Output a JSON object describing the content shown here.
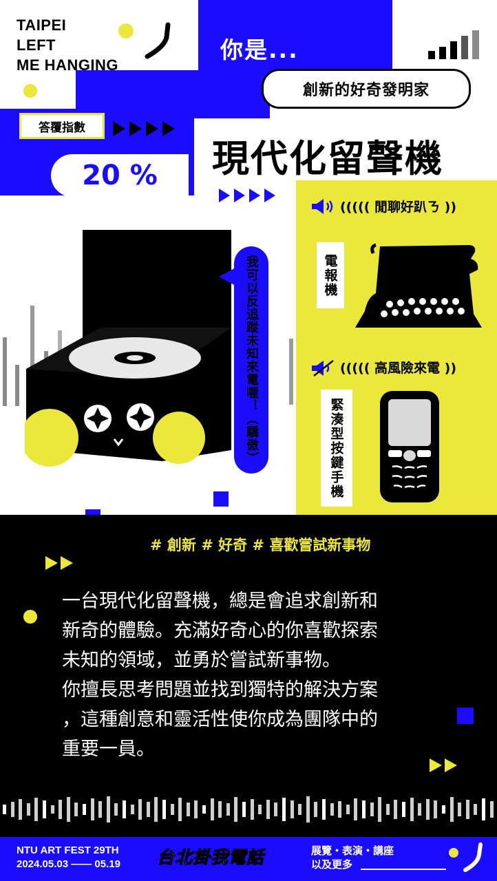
{
  "brand": {
    "line1": "TAIPEI",
    "line2": "LEFT",
    "line3": "ME HANGING"
  },
  "header": {
    "you_are": "你是...",
    "type_label": "創新的好奇發明家"
  },
  "score": {
    "label": "答覆指數",
    "value": "20 %"
  },
  "result": {
    "title": "現代化留聲機"
  },
  "speech": {
    "text": "我可以反追蹤未知來電喔！（驕傲）"
  },
  "match": {
    "good": {
      "caption": "((((( 閒聊好趴ㄋ ))",
      "item": "電報機"
    },
    "bad": {
      "caption": "((((( 高風險來電 ))",
      "item": "緊湊型按鍵手機"
    }
  },
  "tags": "# 創新 # 好奇 # 喜歡嘗試新事物",
  "description": [
    "一台現代化留聲機，總是會追求創新和",
    "新奇的體驗。充滿好奇心的你喜歡探索",
    "未知的領域，並勇於嘗試新事物。",
    "你擅長思考問題並找到獨特的解決方案",
    "，這種創意和靈活性使你成為團隊中的",
    "重要一員。"
  ],
  "footer": {
    "fest": "NTU ART FEST 29TH",
    "dates": "2024.05.03 —— 05.19",
    "logo_text": "台北掛我電話",
    "events": "展覽・表演・講座",
    "more": "以及更多"
  },
  "colors": {
    "blue": "#1a0dff",
    "yellow": "#ebe83c",
    "black": "#000000"
  }
}
